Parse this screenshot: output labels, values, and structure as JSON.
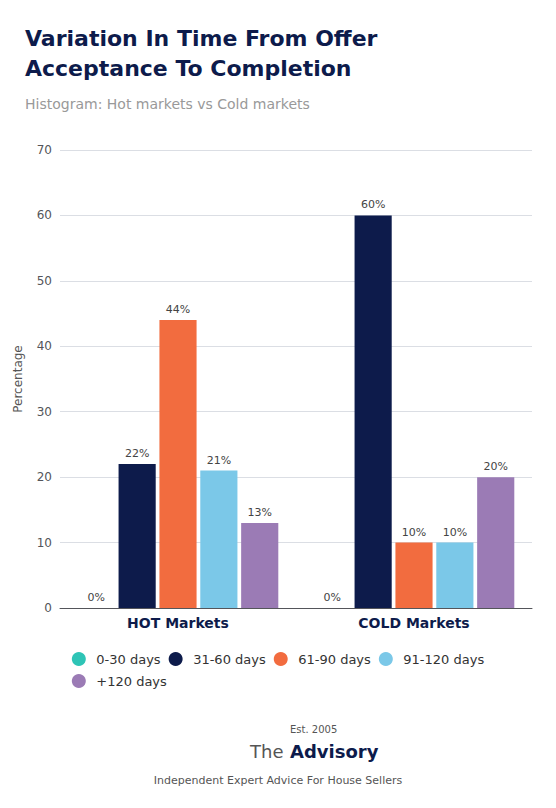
{
  "chart_data": {
    "type": "bar",
    "title": "Variation In Time From Offer\nAcceptance To Completion",
    "subtitle": "Histogram: Hot markets vs Cold markets",
    "y_label": "Percentage",
    "categories": [
      "HOT Markets",
      "COLD Markets"
    ],
    "series": [
      {
        "name": "0-30 days",
        "color": "#2ec4b6",
        "values": [
          0,
          0
        ],
        "value_labels": [
          "0%",
          "0%"
        ]
      },
      {
        "name": "31-60 days",
        "color": "#0d1b4b",
        "values": [
          22,
          60
        ],
        "value_labels": [
          "22%",
          "60%"
        ]
      },
      {
        "name": "61-90 days",
        "color": "#f26c3f",
        "values": [
          44,
          10
        ],
        "value_labels": [
          "44%",
          "10%"
        ]
      },
      {
        "name": "91-120 days",
        "color": "#7bc8e8",
        "values": [
          21,
          10
        ],
        "value_labels": [
          "21%",
          "10%"
        ]
      },
      {
        "name": "+120 days",
        "color": "#9b7bb5",
        "values": [
          13,
          20
        ],
        "value_labels": [
          "13%",
          "20%"
        ]
      }
    ],
    "ylim": [
      0,
      70
    ],
    "yticks": [
      0,
      10,
      20,
      30,
      40,
      50,
      60,
      70
    ],
    "grid": true,
    "legend": "bottom",
    "data_labels": true,
    "annotations": [
      "The",
      "Advisory",
      "Est. 2005",
      "Independent Expert Advice For House Sellers"
    ]
  }
}
